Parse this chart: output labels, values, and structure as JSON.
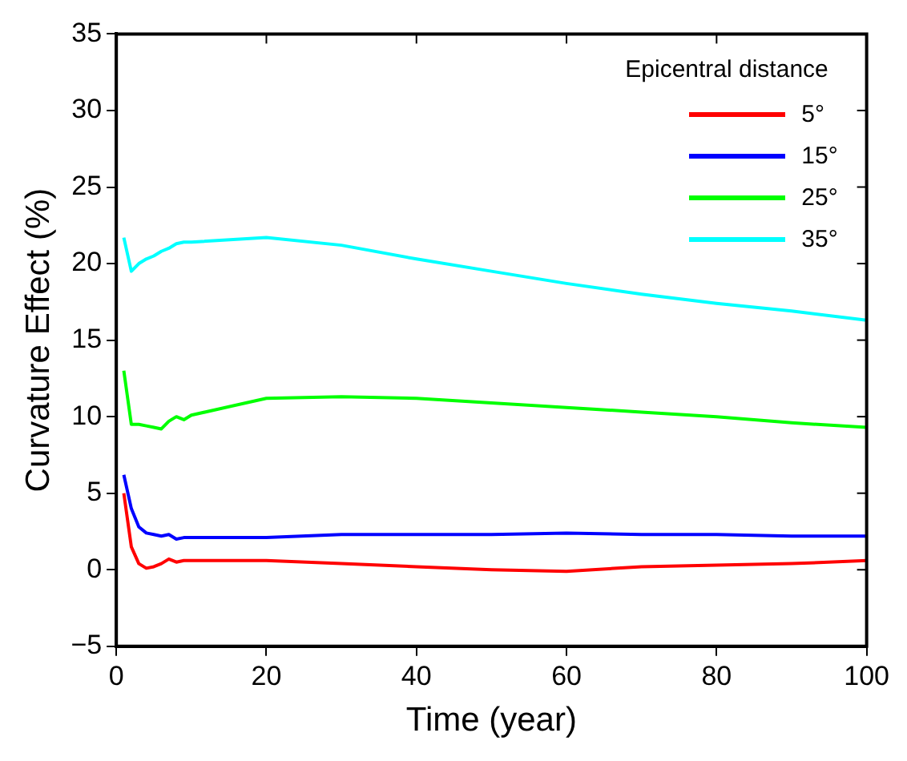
{
  "chart_data": {
    "type": "line",
    "xlabel": "Time (year)",
    "ylabel": "Curvature Effect (%)",
    "legend_title": "Epicentral distance",
    "x": [
      1,
      2,
      3,
      4,
      5,
      6,
      7,
      8,
      9,
      10,
      20,
      30,
      40,
      50,
      60,
      70,
      80,
      90,
      100
    ],
    "series": [
      {
        "name": "5°",
        "color": "#ff0000",
        "values": [
          5.0,
          1.5,
          0.4,
          0.1,
          0.2,
          0.4,
          0.7,
          0.5,
          0.6,
          0.6,
          0.6,
          0.4,
          0.2,
          0.0,
          -0.1,
          0.2,
          0.3,
          0.4,
          0.6
        ]
      },
      {
        "name": "15°",
        "color": "#0000ff",
        "values": [
          6.2,
          4.0,
          2.8,
          2.4,
          2.3,
          2.2,
          2.3,
          2.0,
          2.1,
          2.1,
          2.1,
          2.3,
          2.3,
          2.3,
          2.4,
          2.3,
          2.3,
          2.2,
          2.2
        ]
      },
      {
        "name": "25°",
        "color": "#00ff00",
        "values": [
          13.0,
          9.5,
          9.5,
          9.4,
          9.3,
          9.2,
          9.7,
          10.0,
          9.8,
          10.1,
          11.2,
          11.3,
          11.2,
          10.9,
          10.6,
          10.3,
          10.0,
          9.6,
          9.3
        ]
      },
      {
        "name": "35°",
        "color": "#00ffff",
        "values": [
          21.7,
          19.5,
          20.0,
          20.3,
          20.5,
          20.8,
          21.0,
          21.3,
          21.4,
          21.4,
          21.7,
          21.2,
          20.3,
          19.5,
          18.7,
          18.0,
          17.4,
          16.9,
          16.3
        ]
      }
    ],
    "xlim": [
      0,
      100
    ],
    "xticks": [
      0,
      20,
      40,
      60,
      80,
      100
    ],
    "ylim": [
      -5,
      35
    ],
    "yticks": [
      -5,
      0,
      5,
      10,
      15,
      20,
      25,
      30,
      35
    ],
    "grid": false,
    "legend": "top right",
    "marker": "none",
    "line_style": "solid"
  }
}
